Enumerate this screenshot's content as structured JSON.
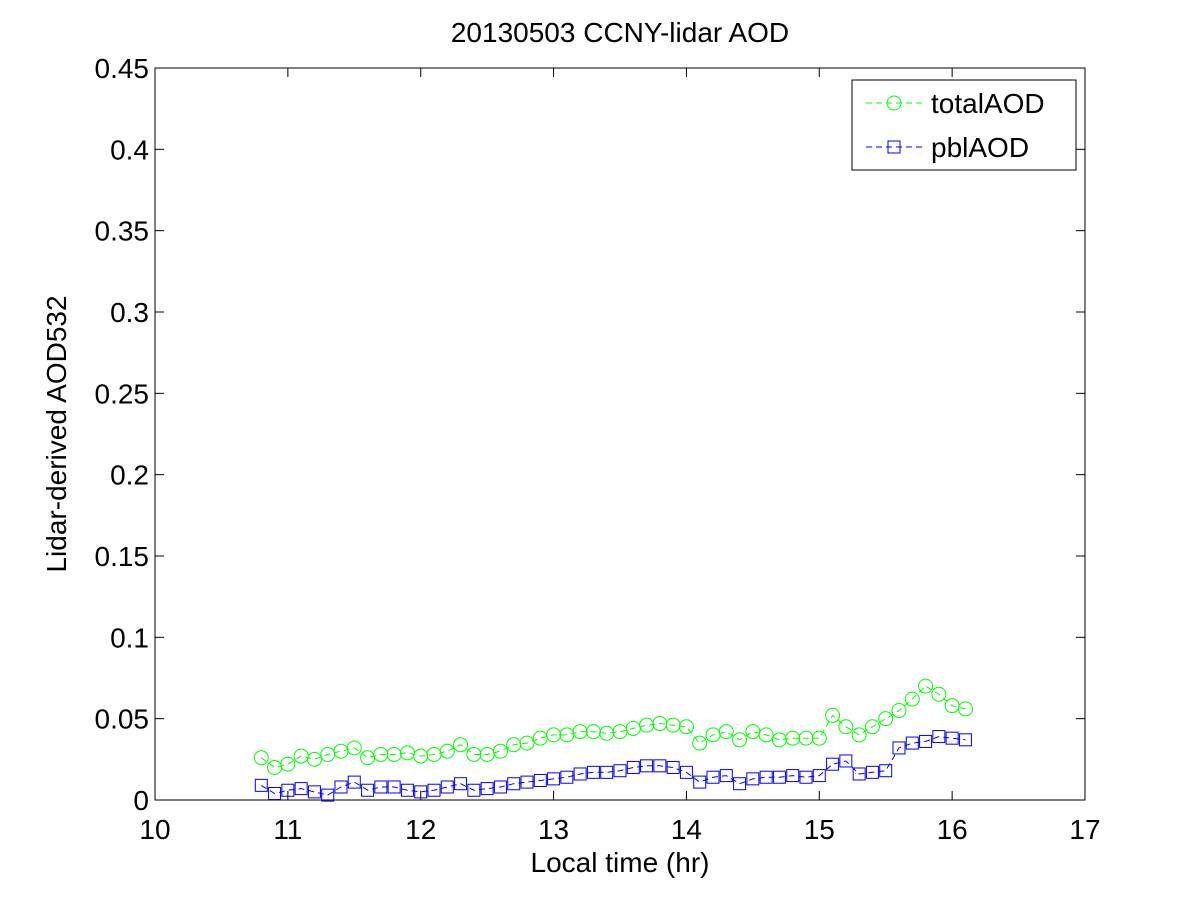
{
  "chart_data": {
    "type": "line",
    "title": "20130503 CCNY-lidar AOD",
    "xlabel": "Local time (hr)",
    "ylabel": "Lidar-derived AOD532",
    "xlim": [
      10,
      17
    ],
    "ylim": [
      0,
      0.45
    ],
    "xticks": [
      10,
      11,
      12,
      13,
      14,
      15,
      16,
      17
    ],
    "xtick_labels": [
      "10",
      "11",
      "12",
      "13",
      "14",
      "15",
      "16",
      "17"
    ],
    "yticks": [
      0,
      0.05,
      0.1,
      0.15,
      0.2,
      0.25,
      0.3,
      0.35,
      0.4,
      0.45
    ],
    "ytick_labels": [
      "0",
      "0.05",
      "0.1",
      "0.15",
      "0.2",
      "0.25",
      "0.3",
      "0.35",
      "0.4",
      "0.45"
    ],
    "grid": false,
    "legend_position": "top-right",
    "series": [
      {
        "name": "totalAOD",
        "color": "#00ff00",
        "marker": "circle",
        "line_style": "dashed",
        "x": [
          10.8,
          10.9,
          11.0,
          11.1,
          11.2,
          11.3,
          11.4,
          11.5,
          11.6,
          11.7,
          11.8,
          11.9,
          12.0,
          12.1,
          12.2,
          12.3,
          12.4,
          12.5,
          12.6,
          12.7,
          12.8,
          12.9,
          13.0,
          13.1,
          13.2,
          13.3,
          13.4,
          13.5,
          13.6,
          13.7,
          13.8,
          13.9,
          14.0,
          14.1,
          14.2,
          14.3,
          14.4,
          14.5,
          14.6,
          14.7,
          14.8,
          14.9,
          15.0,
          15.1,
          15.2,
          15.3,
          15.4,
          15.5,
          15.6,
          15.7,
          15.8,
          15.9,
          16.0,
          16.1
        ],
        "y": [
          0.026,
          0.02,
          0.022,
          0.027,
          0.025,
          0.028,
          0.03,
          0.032,
          0.026,
          0.028,
          0.028,
          0.029,
          0.027,
          0.028,
          0.03,
          0.034,
          0.028,
          0.028,
          0.03,
          0.034,
          0.035,
          0.038,
          0.04,
          0.04,
          0.042,
          0.042,
          0.041,
          0.042,
          0.044,
          0.046,
          0.047,
          0.046,
          0.045,
          0.035,
          0.04,
          0.042,
          0.037,
          0.042,
          0.04,
          0.037,
          0.038,
          0.038,
          0.038,
          0.052,
          0.045,
          0.04,
          0.045,
          0.05,
          0.055,
          0.062,
          0.07,
          0.065,
          0.058,
          0.056
        ]
      },
      {
        "name": "pblAOD",
        "color": "#0000ff",
        "marker": "square",
        "line_style": "dashed",
        "x": [
          10.8,
          10.9,
          11.0,
          11.1,
          11.2,
          11.3,
          11.4,
          11.5,
          11.6,
          11.7,
          11.8,
          11.9,
          12.0,
          12.1,
          12.2,
          12.3,
          12.4,
          12.5,
          12.6,
          12.7,
          12.8,
          12.9,
          13.0,
          13.1,
          13.2,
          13.3,
          13.4,
          13.5,
          13.6,
          13.7,
          13.8,
          13.9,
          14.0,
          14.1,
          14.2,
          14.3,
          14.4,
          14.5,
          14.6,
          14.7,
          14.8,
          14.9,
          15.0,
          15.1,
          15.2,
          15.3,
          15.4,
          15.5,
          15.6,
          15.7,
          15.8,
          15.9,
          16.0,
          16.1
        ],
        "y": [
          0.009,
          0.004,
          0.006,
          0.007,
          0.005,
          0.003,
          0.008,
          0.011,
          0.006,
          0.008,
          0.008,
          0.006,
          0.005,
          0.006,
          0.008,
          0.01,
          0.006,
          0.007,
          0.008,
          0.01,
          0.011,
          0.012,
          0.013,
          0.014,
          0.016,
          0.017,
          0.017,
          0.018,
          0.02,
          0.021,
          0.021,
          0.02,
          0.017,
          0.011,
          0.014,
          0.015,
          0.01,
          0.013,
          0.014,
          0.014,
          0.015,
          0.014,
          0.015,
          0.022,
          0.024,
          0.016,
          0.017,
          0.018,
          0.032,
          0.035,
          0.036,
          0.039,
          0.038,
          0.037
        ]
      }
    ]
  }
}
